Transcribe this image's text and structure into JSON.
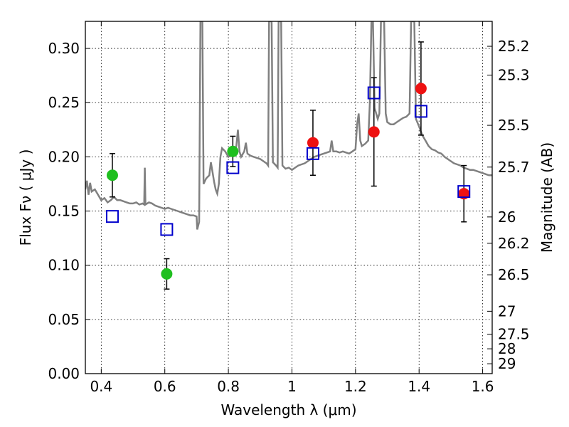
{
  "chart_data": {
    "type": "scatter",
    "xlabel": "Wavelength  λ (μm)",
    "ylabel": "Flux  Fν  ( μJy )",
    "ylabel_right": "Magnitude (AB)",
    "xlim": [
      0.35,
      1.63
    ],
    "ylim": [
      0.0,
      0.325
    ],
    "grid": true,
    "x_ticks": [
      0.4,
      0.6,
      0.8,
      1.0,
      1.2,
      1.4,
      1.6
    ],
    "x_tick_labels": [
      "0.4",
      "0.6",
      "0.8",
      "1",
      "1.2",
      "1.4",
      "1.6"
    ],
    "y_ticks": [
      0.0,
      0.05,
      0.1,
      0.15,
      0.2,
      0.25,
      0.3
    ],
    "y_tick_labels": [
      "0.00",
      "0.05",
      "0.10",
      "0.15",
      "0.20",
      "0.25",
      "0.30"
    ],
    "mag_ticks": [
      {
        "mag": 25.2,
        "label": "25.2"
      },
      {
        "mag": 25.3,
        "label": "25.3"
      },
      {
        "mag": 25.5,
        "label": "25.5"
      },
      {
        "mag": 25.7,
        "label": "25.7"
      },
      {
        "mag": 26.0,
        "label": "26"
      },
      {
        "mag": 26.2,
        "label": "26.2"
      },
      {
        "mag": 26.5,
        "label": "26.5"
      },
      {
        "mag": 27.0,
        "label": "27"
      },
      {
        "mag": 27.5,
        "label": "27.5"
      },
      {
        "mag": 28.0,
        "label": "28"
      },
      {
        "mag": 29.0,
        "label": "29"
      }
    ],
    "series": [
      {
        "marker": "circle",
        "color": "#1fbf1f",
        "points": [
          {
            "x": 0.435,
            "y": 0.183,
            "err": 0.02
          },
          {
            "x": 0.606,
            "y": 0.092,
            "err": 0.014
          },
          {
            "x": 0.814,
            "y": 0.205,
            "err": 0.014
          }
        ]
      },
      {
        "marker": "circle",
        "color": "#ee1111",
        "points": [
          {
            "x": 1.066,
            "y": 0.213,
            "err": 0.03
          },
          {
            "x": 1.258,
            "y": 0.223,
            "err": 0.05
          },
          {
            "x": 1.406,
            "y": 0.263,
            "err": 0.043
          },
          {
            "x": 1.541,
            "y": 0.166,
            "err": 0.026
          }
        ]
      },
      {
        "marker": "open-square",
        "color": "#0000cc",
        "points": [
          {
            "x": 0.435,
            "y": 0.145
          },
          {
            "x": 0.606,
            "y": 0.133
          },
          {
            "x": 0.814,
            "y": 0.19
          },
          {
            "x": 1.066,
            "y": 0.203
          },
          {
            "x": 1.258,
            "y": 0.259
          },
          {
            "x": 1.406,
            "y": 0.242
          },
          {
            "x": 1.541,
            "y": 0.168
          }
        ]
      }
    ],
    "model_spectrum": {
      "color": "#808080",
      "points": [
        [
          0.35,
          0.17
        ],
        [
          0.355,
          0.178
        ],
        [
          0.36,
          0.165
        ],
        [
          0.365,
          0.176
        ],
        [
          0.37,
          0.168
        ],
        [
          0.38,
          0.17
        ],
        [
          0.39,
          0.165
        ],
        [
          0.4,
          0.16
        ],
        [
          0.41,
          0.162
        ],
        [
          0.42,
          0.158
        ],
        [
          0.43,
          0.16
        ],
        [
          0.44,
          0.163
        ],
        [
          0.45,
          0.16
        ],
        [
          0.46,
          0.16
        ],
        [
          0.47,
          0.159
        ],
        [
          0.48,
          0.158
        ],
        [
          0.49,
          0.157
        ],
        [
          0.5,
          0.157
        ],
        [
          0.51,
          0.158
        ],
        [
          0.52,
          0.156
        ],
        [
          0.53,
          0.157
        ],
        [
          0.535,
          0.156
        ],
        [
          0.537,
          0.19
        ],
        [
          0.539,
          0.156
        ],
        [
          0.55,
          0.158
        ],
        [
          0.56,
          0.157
        ],
        [
          0.57,
          0.155
        ],
        [
          0.58,
          0.154
        ],
        [
          0.59,
          0.153
        ],
        [
          0.6,
          0.152
        ],
        [
          0.61,
          0.153
        ],
        [
          0.62,
          0.152
        ],
        [
          0.63,
          0.151
        ],
        [
          0.64,
          0.15
        ],
        [
          0.65,
          0.149
        ],
        [
          0.66,
          0.148
        ],
        [
          0.67,
          0.147
        ],
        [
          0.68,
          0.146
        ],
        [
          0.69,
          0.146
        ],
        [
          0.7,
          0.145
        ],
        [
          0.702,
          0.133
        ],
        [
          0.708,
          0.14
        ],
        [
          0.712,
          0.325
        ],
        [
          0.718,
          0.325
        ],
        [
          0.722,
          0.175
        ],
        [
          0.73,
          0.18
        ],
        [
          0.74,
          0.183
        ],
        [
          0.745,
          0.195
        ],
        [
          0.75,
          0.186
        ],
        [
          0.755,
          0.177
        ],
        [
          0.76,
          0.17
        ],
        [
          0.765,
          0.166
        ],
        [
          0.77,
          0.175
        ],
        [
          0.775,
          0.2
        ],
        [
          0.78,
          0.208
        ],
        [
          0.79,
          0.205
        ],
        [
          0.8,
          0.2
        ],
        [
          0.81,
          0.203
        ],
        [
          0.82,
          0.205
        ],
        [
          0.825,
          0.21
        ],
        [
          0.83,
          0.225
        ],
        [
          0.835,
          0.205
        ],
        [
          0.84,
          0.2
        ],
        [
          0.85,
          0.205
        ],
        [
          0.855,
          0.213
        ],
        [
          0.86,
          0.203
        ],
        [
          0.87,
          0.201
        ],
        [
          0.88,
          0.2
        ],
        [
          0.89,
          0.199
        ],
        [
          0.9,
          0.198
        ],
        [
          0.91,
          0.196
        ],
        [
          0.92,
          0.194
        ],
        [
          0.925,
          0.192
        ],
        [
          0.928,
          0.325
        ],
        [
          0.936,
          0.325
        ],
        [
          0.94,
          0.195
        ],
        [
          0.95,
          0.192
        ],
        [
          0.955,
          0.19
        ],
        [
          0.958,
          0.325
        ],
        [
          0.966,
          0.325
        ],
        [
          0.97,
          0.192
        ],
        [
          0.98,
          0.189
        ],
        [
          0.99,
          0.19
        ],
        [
          1.0,
          0.188
        ],
        [
          1.01,
          0.19
        ],
        [
          1.02,
          0.192
        ],
        [
          1.03,
          0.193
        ],
        [
          1.04,
          0.194
        ],
        [
          1.05,
          0.196
        ],
        [
          1.06,
          0.198
        ],
        [
          1.07,
          0.2
        ],
        [
          1.08,
          0.201
        ],
        [
          1.09,
          0.202
        ],
        [
          1.1,
          0.203
        ],
        [
          1.11,
          0.204
        ],
        [
          1.12,
          0.205
        ],
        [
          1.125,
          0.215
        ],
        [
          1.13,
          0.205
        ],
        [
          1.14,
          0.205
        ],
        [
          1.15,
          0.204
        ],
        [
          1.16,
          0.205
        ],
        [
          1.17,
          0.204
        ],
        [
          1.18,
          0.203
        ],
        [
          1.19,
          0.205
        ],
        [
          1.2,
          0.207
        ],
        [
          1.205,
          0.23
        ],
        [
          1.21,
          0.24
        ],
        [
          1.215,
          0.215
        ],
        [
          1.22,
          0.21
        ],
        [
          1.23,
          0.212
        ],
        [
          1.24,
          0.215
        ],
        [
          1.245,
          0.25
        ],
        [
          1.25,
          0.325
        ],
        [
          1.255,
          0.325
        ],
        [
          1.26,
          0.245
        ],
        [
          1.27,
          0.235
        ],
        [
          1.275,
          0.24
        ],
        [
          1.28,
          0.325
        ],
        [
          1.29,
          0.325
        ],
        [
          1.295,
          0.24
        ],
        [
          1.3,
          0.232
        ],
        [
          1.31,
          0.23
        ],
        [
          1.32,
          0.23
        ],
        [
          1.33,
          0.232
        ],
        [
          1.34,
          0.234
        ],
        [
          1.35,
          0.236
        ],
        [
          1.36,
          0.237
        ],
        [
          1.37,
          0.24
        ],
        [
          1.375,
          0.325
        ],
        [
          1.385,
          0.325
        ],
        [
          1.39,
          0.235
        ],
        [
          1.4,
          0.228
        ],
        [
          1.41,
          0.22
        ],
        [
          1.42,
          0.215
        ],
        [
          1.43,
          0.21
        ],
        [
          1.44,
          0.207
        ],
        [
          1.45,
          0.206
        ],
        [
          1.46,
          0.204
        ],
        [
          1.47,
          0.203
        ],
        [
          1.48,
          0.2
        ],
        [
          1.49,
          0.198
        ],
        [
          1.5,
          0.196
        ],
        [
          1.51,
          0.194
        ],
        [
          1.52,
          0.193
        ],
        [
          1.53,
          0.192
        ],
        [
          1.54,
          0.19
        ],
        [
          1.55,
          0.189
        ],
        [
          1.56,
          0.188
        ],
        [
          1.57,
          0.188
        ],
        [
          1.58,
          0.187
        ],
        [
          1.59,
          0.186
        ],
        [
          1.6,
          0.185
        ],
        [
          1.61,
          0.184
        ],
        [
          1.62,
          0.183
        ],
        [
          1.63,
          0.183
        ]
      ]
    }
  }
}
